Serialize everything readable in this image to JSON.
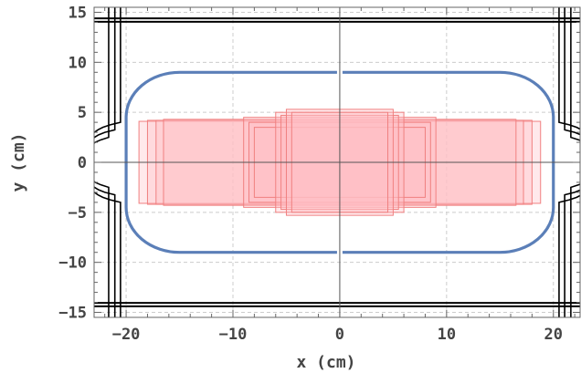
{
  "chart_data": {
    "type": "scatter",
    "title": "",
    "xlabel": "x (cm)",
    "ylabel": "y (cm)",
    "xlim": [
      -23,
      22.5
    ],
    "ylim": [
      -15.5,
      15.5
    ],
    "grid": true,
    "x_ticks": [
      -20,
      -10,
      0,
      10,
      20
    ],
    "y_ticks": [
      -15,
      -10,
      -5,
      0,
      5,
      10,
      15
    ],
    "x_tick_labels": [
      "−20",
      "−10",
      "0",
      "10",
      "20"
    ],
    "y_tick_labels": [
      "−15",
      "−10",
      "−5",
      "0",
      "5",
      "10",
      "15"
    ],
    "x_minor_step": 2,
    "y_minor_step": 1,
    "series": [
      {
        "kind": "rounded-rectangle-outline",
        "color": "#5b7fb8",
        "x_range": [
          -20,
          20
        ],
        "y_range": [
          -9,
          9
        ],
        "corner_radius": [
          5,
          4.5
        ],
        "gaps_at_x": [
          0
        ]
      },
      {
        "kind": "outer-boundary",
        "color": "#000000",
        "horizontal_lines_y": [
          14.05,
          14.4,
          -14.05,
          -14.4
        ],
        "arc_center_x": 0,
        "arc_vertex_x": [
          -24.4,
          -24.2,
          -24.0
        ],
        "arc_passes_through": [
          [
            -18.6,
            14.3
          ]
        ]
      }
    ],
    "rectangles": {
      "fill": "#ffc0c6",
      "stroke": "#f08080",
      "items": [
        {
          "x": [
            -18.8,
            18.8
          ],
          "y": [
            -4.1,
            4.1
          ]
        },
        {
          "x": [
            -18.0,
            18.0
          ],
          "y": [
            -4.2,
            4.2
          ]
        },
        {
          "x": [
            -17.2,
            17.2
          ],
          "y": [
            -4.2,
            4.2
          ]
        },
        {
          "x": [
            -16.5,
            16.5
          ],
          "y": [
            -4.3,
            4.3
          ]
        },
        {
          "x": [
            -9.0,
            9.0
          ],
          "y": [
            -4.5,
            4.5
          ]
        },
        {
          "x": [
            -8.5,
            8.5
          ],
          "y": [
            -4.0,
            4.0
          ]
        },
        {
          "x": [
            -8.0,
            8.0
          ],
          "y": [
            -3.5,
            3.5
          ]
        },
        {
          "x": [
            -6.0,
            6.0
          ],
          "y": [
            -5.0,
            5.0
          ]
        },
        {
          "x": [
            -5.5,
            5.5
          ],
          "y": [
            -4.7,
            4.7
          ]
        },
        {
          "x": [
            -5.0,
            5.0
          ],
          "y": [
            -5.3,
            5.3
          ]
        },
        {
          "x": [
            -4.5,
            4.5
          ],
          "y": [
            -5.0,
            5.0
          ]
        }
      ]
    }
  }
}
